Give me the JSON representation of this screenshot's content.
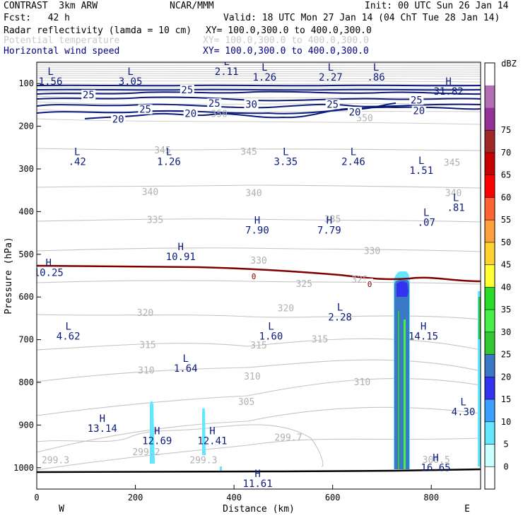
{
  "header": {
    "model": "CONTRAST  3km ARW",
    "org": "NCAR/MMM",
    "init": "Init: 00 UTC Sun 26 Jan 14",
    "fcst": "Fcst:   42 h",
    "valid": "Valid: 18 UTC Mon 27 Jan 14 (04 ChT Tue 28 Jan 14)",
    "field1": "Radar reflectivity (lamda = 10 cm)",
    "field1_xy": "XY= 100.0,300.0 to 400.0,300.0",
    "field2": "Potential temperature",
    "field2_xy": "XY= 100.0,300.0 to 400.0,300.0",
    "field3": "Horizontal wind speed",
    "field3_xy": "XY= 100.0,300.0 to 400.0,300.0"
  },
  "chart_data": {
    "type": "cross-section",
    "title": "Radar reflectivity / Potential temperature / Horizontal wind speed",
    "xlabel": "Distance (km)",
    "ylabel": "Pressure (hPa)",
    "xlim": [
      0,
      900
    ],
    "ylim": [
      1050,
      50
    ],
    "x_ticks": [
      0,
      200,
      400,
      600,
      800
    ],
    "y_ticks": [
      100,
      200,
      300,
      400,
      500,
      600,
      700,
      800,
      900,
      1000
    ],
    "west_label": "W",
    "east_label": "E",
    "colorbar": {
      "unit": "dBZ",
      "levels": [
        0,
        5,
        10,
        15,
        20,
        25,
        30,
        35,
        40,
        45,
        50,
        55,
        60,
        65,
        70,
        75
      ],
      "colors": [
        "#ffffff",
        "#c8ffff",
        "#64e6ff",
        "#3ca0ff",
        "#3232f0",
        "#3c78c8",
        "#32c832",
        "#46f046",
        "#28dc28",
        "#ffff32",
        "#ffd232",
        "#ffa03c",
        "#ff6432",
        "#ff0000",
        "#c80000",
        "#a02828",
        "#963296",
        "#b46eb4",
        "#ffffff"
      ]
    },
    "theta_labels": [
      {
        "x": 370,
        "p": 172,
        "v": "350"
      },
      {
        "x": 665,
        "p": 182,
        "v": "350"
      },
      {
        "x": 255,
        "p": 257,
        "v": "345"
      },
      {
        "x": 430,
        "p": 260,
        "v": "345"
      },
      {
        "x": 842,
        "p": 286,
        "v": "345"
      },
      {
        "x": 230,
        "p": 355,
        "v": "340"
      },
      {
        "x": 440,
        "p": 357,
        "v": "340"
      },
      {
        "x": 845,
        "p": 357,
        "v": "340"
      },
      {
        "x": 240,
        "p": 420,
        "v": "335"
      },
      {
        "x": 600,
        "p": 418,
        "v": "335"
      },
      {
        "x": 450,
        "p": 515,
        "v": "330"
      },
      {
        "x": 680,
        "p": 493,
        "v": "330"
      },
      {
        "x": 542,
        "p": 570,
        "v": "325"
      },
      {
        "x": 655,
        "p": 560,
        "v": "325"
      },
      {
        "x": 220,
        "p": 638,
        "v": "320"
      },
      {
        "x": 505,
        "p": 627,
        "v": "320"
      },
      {
        "x": 225,
        "p": 713,
        "v": "315"
      },
      {
        "x": 450,
        "p": 714,
        "v": "315"
      },
      {
        "x": 574,
        "p": 700,
        "v": "315"
      },
      {
        "x": 222,
        "p": 773,
        "v": "310"
      },
      {
        "x": 437,
        "p": 787,
        "v": "310"
      },
      {
        "x": 660,
        "p": 800,
        "v": "310"
      },
      {
        "x": 425,
        "p": 846,
        "v": "305"
      },
      {
        "x": 510,
        "p": 930,
        "v": "299.7"
      },
      {
        "x": 38,
        "p": 983,
        "v": "299.3"
      },
      {
        "x": 222,
        "p": 964,
        "v": "299.2"
      },
      {
        "x": 338,
        "p": 983,
        "v": "299.3"
      },
      {
        "x": 810,
        "p": 982,
        "v": "300.5"
      }
    ],
    "wind_labels": [
      {
        "x": 105,
        "p": 128,
        "v": "25"
      },
      {
        "x": 305,
        "p": 116,
        "v": "25"
      },
      {
        "x": 360,
        "p": 148,
        "v": "25"
      },
      {
        "x": 220,
        "p": 162,
        "v": "25"
      },
      {
        "x": 600,
        "p": 150,
        "v": "25"
      },
      {
        "x": 770,
        "p": 140,
        "v": "25"
      },
      {
        "x": 435,
        "p": 150,
        "v": "30"
      },
      {
        "x": 165,
        "p": 185,
        "v": "20"
      },
      {
        "x": 312,
        "p": 172,
        "v": "20"
      },
      {
        "x": 645,
        "p": 168,
        "v": "20"
      },
      {
        "x": 775,
        "p": 165,
        "v": "20"
      },
      {
        "x": 440,
        "p": 552,
        "v": "0"
      },
      {
        "x": 675,
        "p": 570,
        "v": "0"
      }
    ],
    "highs_lows": [
      {
        "x": 28,
        "p": 80,
        "t": "L",
        "v": "1.56"
      },
      {
        "x": 190,
        "p": 80,
        "t": "L",
        "v": "3.05"
      },
      {
        "x": 385,
        "p": 57,
        "t": "L",
        "v": "2.11"
      },
      {
        "x": 462,
        "p": 70,
        "t": "L",
        "v": "1.26"
      },
      {
        "x": 596,
        "p": 70,
        "t": "L",
        "v": "2.27"
      },
      {
        "x": 688,
        "p": 70,
        "t": "L",
        "v": ".86"
      },
      {
        "x": 835,
        "p": 103,
        "t": "H",
        "v": "31.82"
      },
      {
        "x": 82,
        "p": 268,
        "t": "L",
        "v": ".42"
      },
      {
        "x": 268,
        "p": 268,
        "t": "L",
        "v": "1.26"
      },
      {
        "x": 505,
        "p": 268,
        "t": "L",
        "v": "3.35"
      },
      {
        "x": 642,
        "p": 268,
        "t": "L",
        "v": "2.46"
      },
      {
        "x": 780,
        "p": 288,
        "t": "L",
        "v": "1.51"
      },
      {
        "x": 850,
        "p": 375,
        "t": "L",
        "v": ".81"
      },
      {
        "x": 790,
        "p": 410,
        "t": "L",
        "v": ".07"
      },
      {
        "x": 447,
        "p": 428,
        "t": "H",
        "v": "7.90"
      },
      {
        "x": 593,
        "p": 428,
        "t": "H",
        "v": "7.79"
      },
      {
        "x": 292,
        "p": 490,
        "t": "H",
        "v": "10.91"
      },
      {
        "x": 24,
        "p": 528,
        "t": "H",
        "v": "10.25"
      },
      {
        "x": 615,
        "p": 632,
        "t": "L",
        "v": "2.28"
      },
      {
        "x": 64,
        "p": 677,
        "t": "L",
        "v": "4.62"
      },
      {
        "x": 475,
        "p": 677,
        "t": "L",
        "v": "1.60"
      },
      {
        "x": 784,
        "p": 677,
        "t": "H",
        "v": "14.15"
      },
      {
        "x": 302,
        "p": 752,
        "t": "L",
        "v": "1.64"
      },
      {
        "x": 865,
        "p": 854,
        "t": "L",
        "v": "4.30"
      },
      {
        "x": 133,
        "p": 893,
        "t": "H",
        "v": "13.14"
      },
      {
        "x": 244,
        "p": 922,
        "t": "H",
        "v": "12.69"
      },
      {
        "x": 356,
        "p": 922,
        "t": "H",
        "v": "12.41"
      },
      {
        "x": 448,
        "p": 1022,
        "t": "H",
        "v": "11.61"
      },
      {
        "x": 809,
        "p": 985,
        "t": "H",
        "v": "16.65"
      }
    ]
  }
}
